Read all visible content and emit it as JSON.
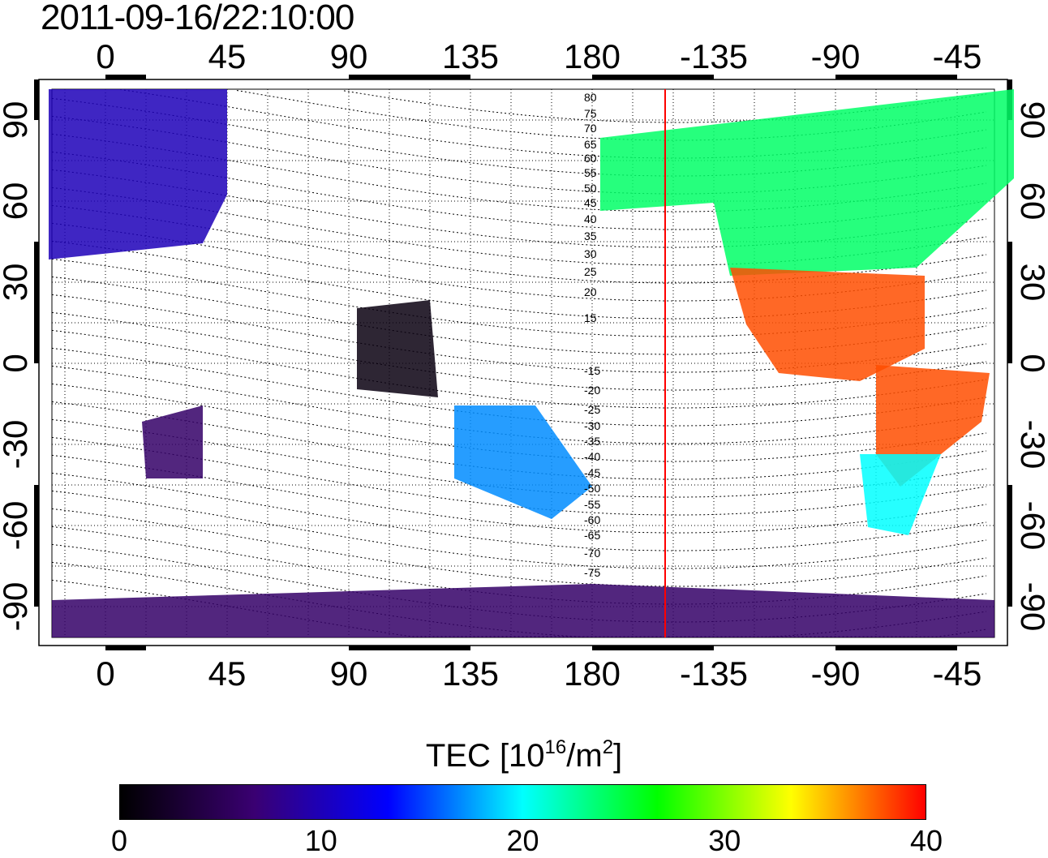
{
  "timestamp": "2011-09-16/22:10:00",
  "map": {
    "top_lon_ticks": [
      "0",
      "45",
      "90",
      "135",
      "180",
      "-135",
      "-90",
      "-45"
    ],
    "bottom_lon_ticks": [
      "0",
      "45",
      "90",
      "135",
      "180",
      "-135",
      "-90",
      "-45"
    ],
    "left_lat_ticks": [
      "90",
      "60",
      "30",
      "0",
      "-30",
      "-60",
      "-90"
    ],
    "right_lat_ticks": [
      "90",
      "60",
      "30",
      "0",
      "-30",
      "-60",
      "-90"
    ],
    "contour_labels": [
      "80",
      "75",
      "70",
      "65",
      "60",
      "55",
      "50",
      "45",
      "40",
      "35",
      "30",
      "25",
      "20",
      "15",
      "-15",
      "-20",
      "-25",
      "-30",
      "-35",
      "-40",
      "-45",
      "-50",
      "-55",
      "-60",
      "-65",
      "-70",
      "-75"
    ],
    "sun_meridian_color": "#ff0000",
    "tec_regions": [
      {
        "name": "europe",
        "value": 10
      },
      {
        "name": "north-america",
        "value": 24
      },
      {
        "name": "central-america",
        "value": 38
      },
      {
        "name": "south-america",
        "value": 38
      },
      {
        "name": "southeast-asia",
        "value": 1
      },
      {
        "name": "australia",
        "value": 17
      },
      {
        "name": "antarctica",
        "value": 6
      }
    ]
  },
  "colorbar": {
    "title_prefix": "TEC  [10",
    "title_exp1": "16",
    "title_mid": "/m",
    "title_exp2": "2",
    "title_suffix": "]",
    "ticks": [
      "0",
      "10",
      "20",
      "30",
      "40"
    ],
    "range": [
      0,
      40
    ],
    "colors": [
      "#000000",
      "#3a0072",
      "#0000ff",
      "#00ffff",
      "#00ff00",
      "#ffff00",
      "#ff0000"
    ]
  }
}
